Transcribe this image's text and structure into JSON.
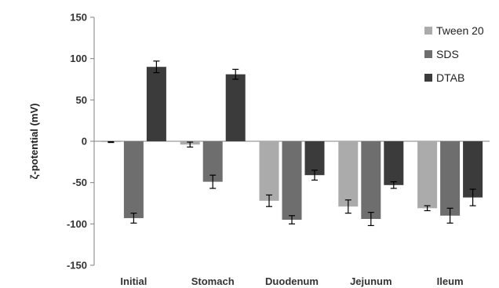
{
  "chart_data": {
    "type": "bar",
    "title": "",
    "xlabel": "",
    "ylabel": "ζ-potential (mV)",
    "ylim": [
      -150,
      150
    ],
    "yticks": [
      150,
      100,
      50,
      0,
      -50,
      -100,
      -150
    ],
    "ytick_labels": [
      "150",
      "100",
      "50",
      "0",
      "-50",
      "-100",
      "-150"
    ],
    "categories": [
      "Initial",
      "Stomach",
      "Duodenum",
      "Jejunum",
      "Ileum"
    ],
    "grid": false,
    "legend_position": "top-right",
    "series": [
      {
        "name": "Tween 20",
        "color": "#ababab",
        "values": [
          -1,
          -4,
          -72,
          -79,
          -81
        ],
        "errors": [
          0.5,
          3,
          7,
          8,
          3
        ]
      },
      {
        "name": "SDS",
        "color": "#6e6e6e",
        "values": [
          -93,
          -49,
          -95,
          -94,
          -90
        ],
        "errors": [
          6,
          8,
          5,
          8,
          9
        ]
      },
      {
        "name": "DTAB",
        "color": "#3b3b3b",
        "values": [
          90,
          81,
          -41,
          -53,
          -68
        ],
        "errors": [
          7,
          6,
          6,
          4,
          10
        ]
      }
    ]
  }
}
